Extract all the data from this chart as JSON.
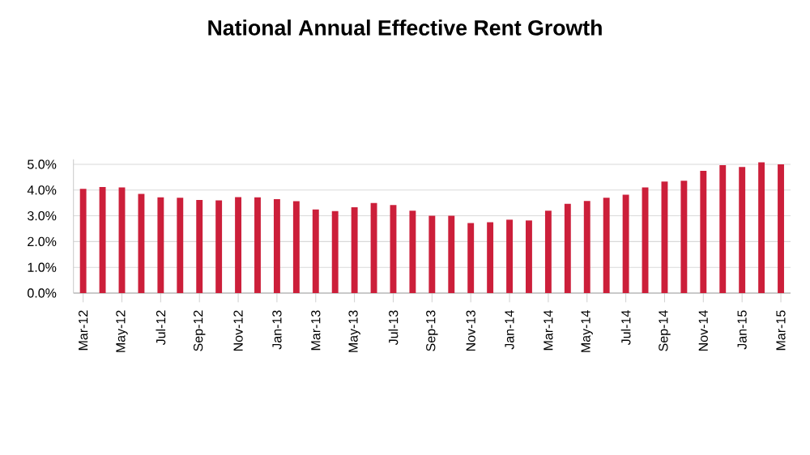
{
  "chart_data": {
    "type": "bar",
    "title": "National Annual Effective Rent Growth",
    "categories": [
      "Mar-12",
      null,
      "May-12",
      null,
      "Jul-12",
      null,
      "Sep-12",
      null,
      "Nov-12",
      null,
      "Jan-13",
      null,
      "Mar-13",
      null,
      "May-13",
      null,
      "Jul-13",
      null,
      "Sep-13",
      null,
      "Nov-13",
      null,
      "Jan-14",
      null,
      "Mar-14",
      null,
      "May-14",
      null,
      "Jul-14",
      null,
      "Sep-14",
      null,
      "Nov-14",
      null,
      "Jan-15",
      null,
      "Mar-15"
    ],
    "values": [
      4.05,
      4.12,
      4.1,
      3.85,
      3.72,
      3.7,
      3.62,
      3.6,
      3.73,
      3.72,
      3.65,
      3.57,
      3.25,
      3.18,
      3.33,
      3.5,
      3.42,
      3.2,
      3.0,
      3.0,
      2.72,
      2.75,
      2.85,
      2.82,
      3.2,
      3.47,
      3.58,
      3.7,
      3.82,
      4.1,
      4.33,
      4.36,
      4.75,
      4.97,
      4.9,
      5.08,
      5.0
    ],
    "color": "#cc1f3a",
    "ylim": [
      0,
      5.2
    ],
    "yticks": [
      {
        "value": 0,
        "label": "0.0%"
      },
      {
        "value": 1,
        "label": "1.0%"
      },
      {
        "value": 2,
        "label": "2.0%"
      },
      {
        "value": 3,
        "label": "3.0%"
      },
      {
        "value": 4,
        "label": "4.0%"
      },
      {
        "value": 5,
        "label": "5.0%"
      }
    ],
    "grid": "y"
  }
}
